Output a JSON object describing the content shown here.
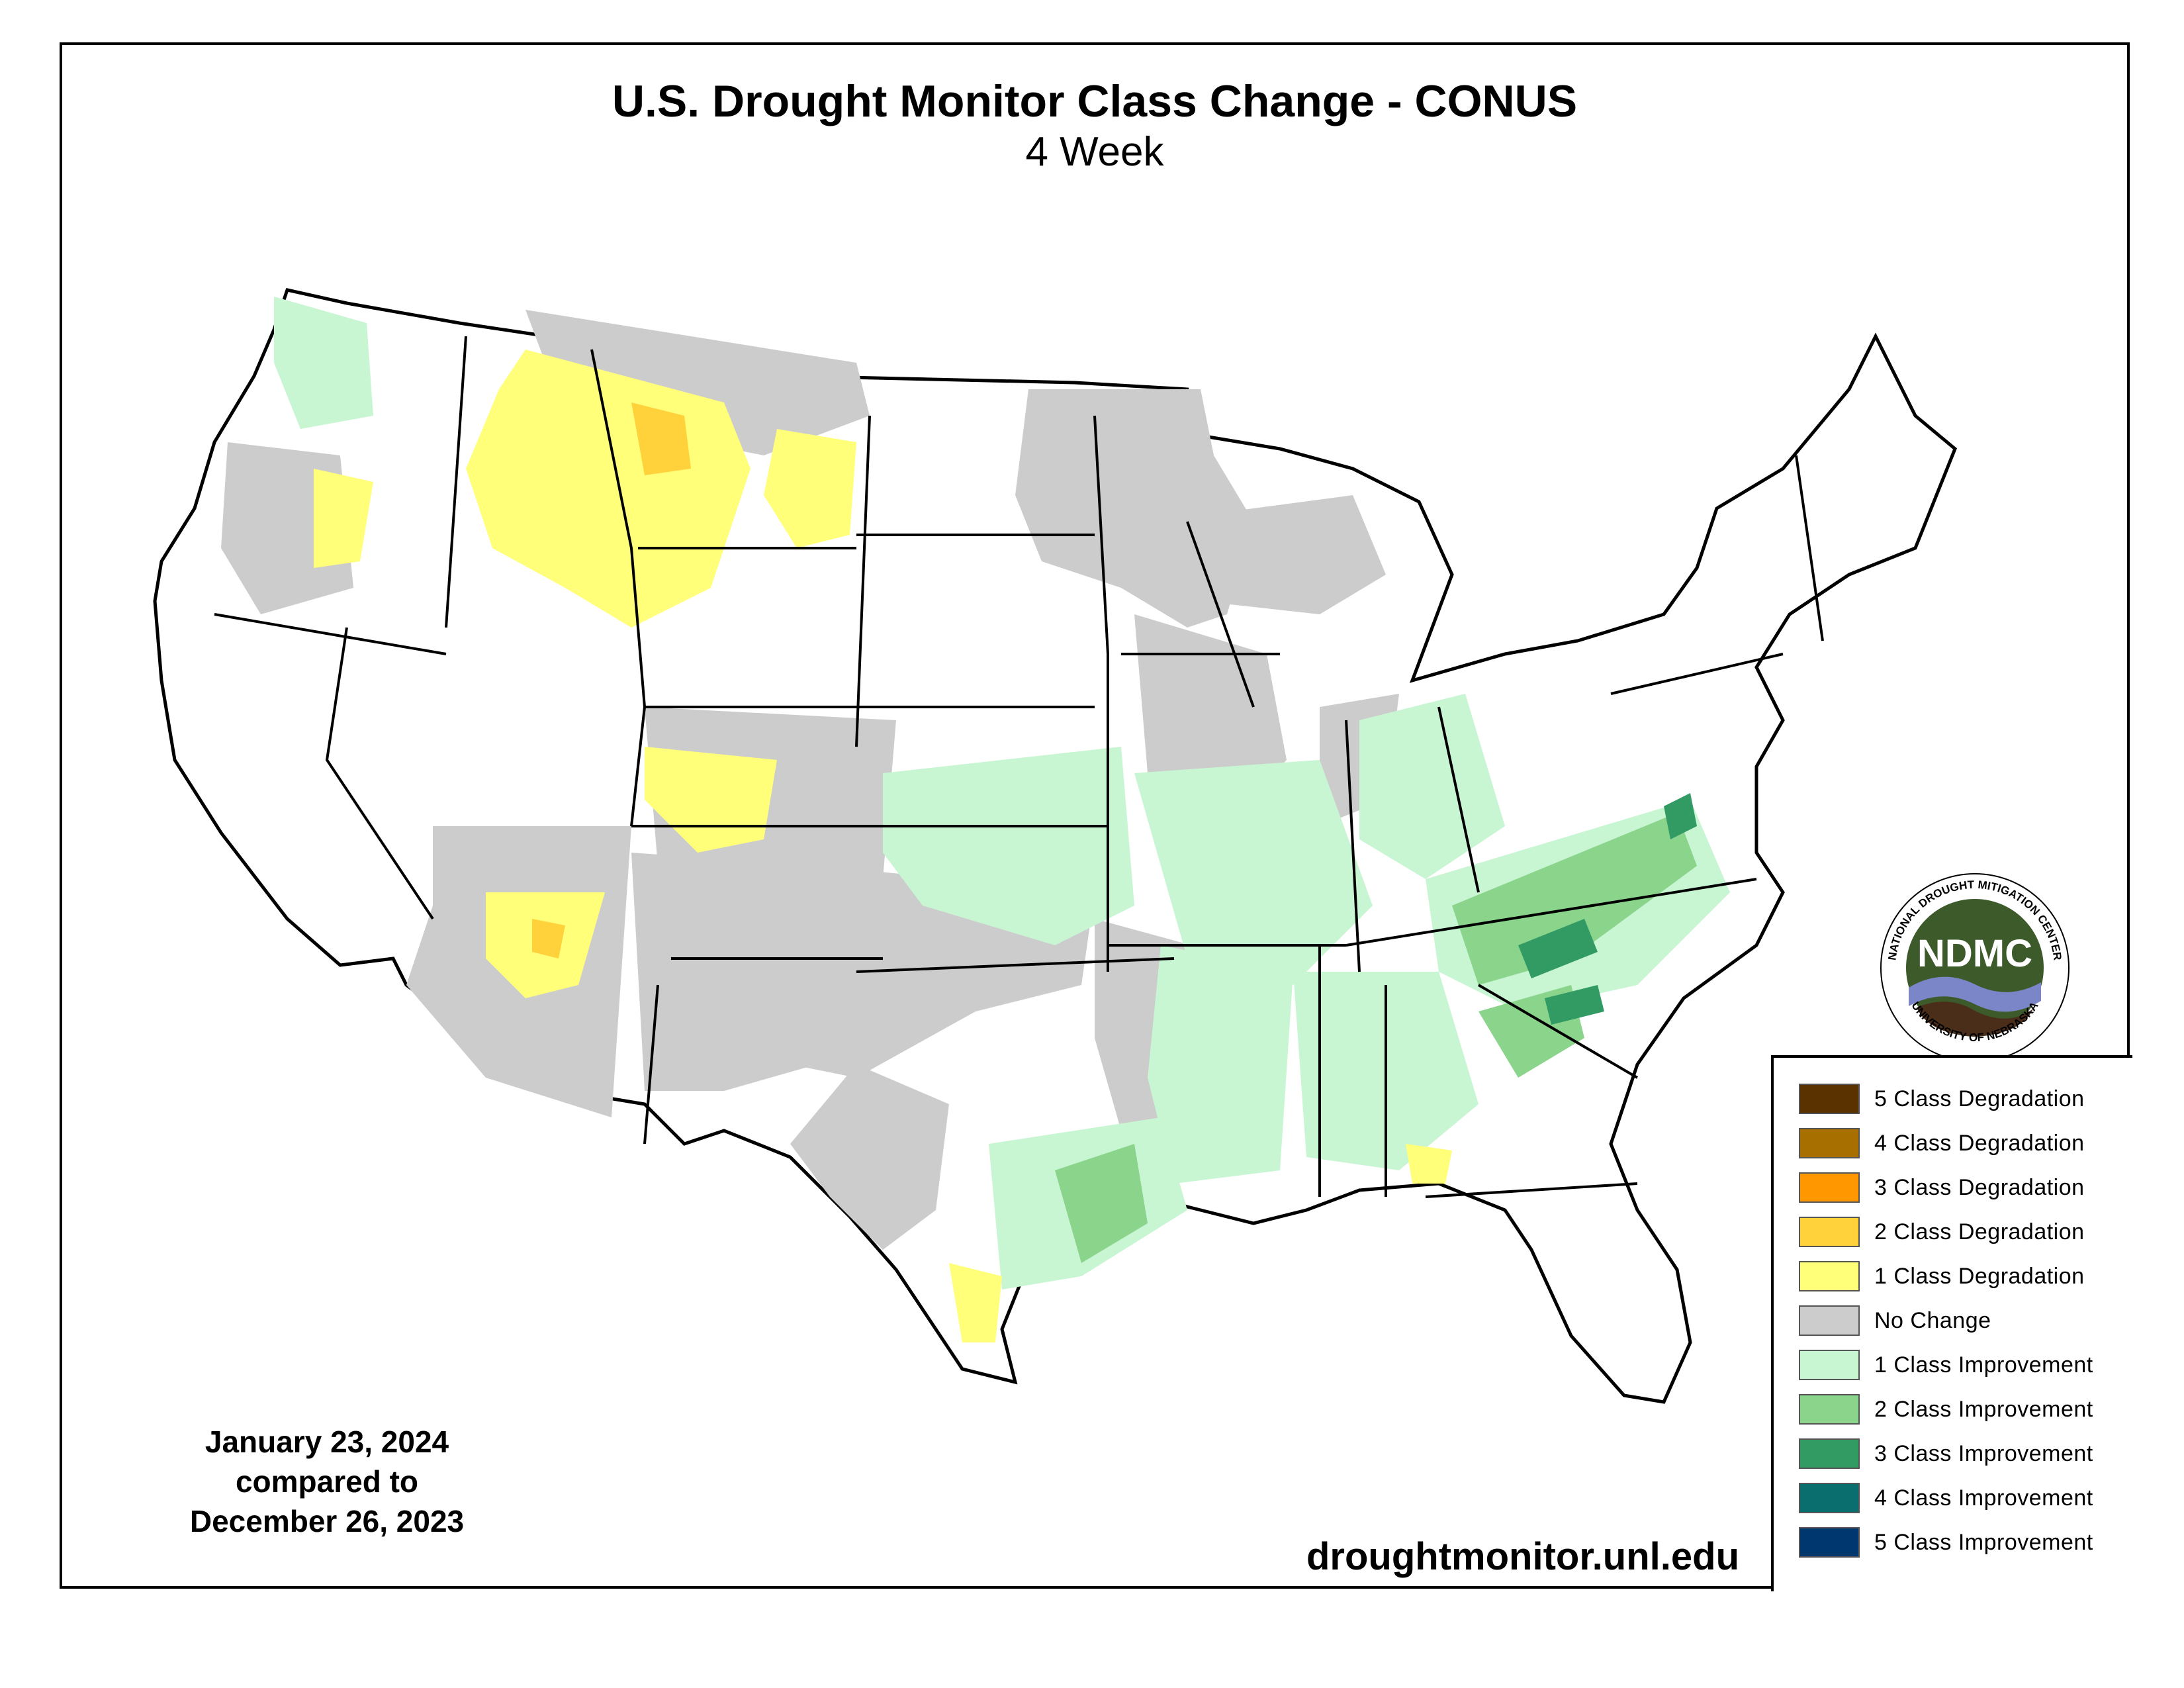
{
  "title": "U.S. Drought Monitor Class Change - CONUS",
  "subtitle": "4 Week",
  "dates": {
    "line1": "January 23, 2024",
    "line2": "compared to",
    "line3": "December 26, 2023"
  },
  "url": "droughtmonitor.unl.edu",
  "logo": {
    "center_text": "NDMC",
    "ring_top": "NATIONAL DROUGHT MITIGATION CENTER",
    "ring_bottom": "UNIVERSITY OF NEBRASKA"
  },
  "legend": [
    {
      "label": "5 Class Degradation",
      "color": "#5a3200"
    },
    {
      "label": "4 Class Degradation",
      "color": "#a66f00"
    },
    {
      "label": "3 Class Degradation",
      "color": "#ff9800"
    },
    {
      "label": "2 Class Degradation",
      "color": "#ffd23c"
    },
    {
      "label": "1 Class Degradation",
      "color": "#ffff7a"
    },
    {
      "label": "No Change",
      "color": "#cccccc"
    },
    {
      "label": "1 Class Improvement",
      "color": "#c8f5d2"
    },
    {
      "label": "2 Class Improvement",
      "color": "#8ad48c"
    },
    {
      "label": "3 Class Improvement",
      "color": "#329b64"
    },
    {
      "label": "4 Class Improvement",
      "color": "#0a6e6e"
    },
    {
      "label": "5 Class Improvement",
      "color": "#00376e"
    }
  ]
}
